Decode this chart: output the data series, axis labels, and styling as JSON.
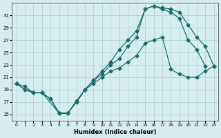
{
  "xlabel": "Humidex (Indice chaleur)",
  "ylabel": "",
  "background_color": "#d7eeee",
  "grid_color": "#b0d4d4",
  "line_color": "#1a6b6b",
  "xlim": [
    -0.5,
    23.5
  ],
  "ylim": [
    14,
    33
  ],
  "yticks": [
    15,
    17,
    19,
    21,
    23,
    25,
    27,
    29,
    31
  ],
  "xticks": [
    0,
    1,
    2,
    3,
    4,
    5,
    6,
    7,
    8,
    9,
    10,
    11,
    12,
    13,
    14,
    15,
    16,
    17,
    18,
    19,
    20,
    21,
    22,
    23
  ],
  "line1_x": [
    0,
    1,
    2,
    3,
    4,
    5,
    6,
    7,
    8,
    9,
    10,
    11,
    12,
    13,
    14,
    15,
    16,
    17,
    18,
    19,
    20,
    21,
    22,
    23
  ],
  "line1_y": [
    20.0,
    19.5,
    18.5,
    18.5,
    17.5,
    15.2,
    15.2,
    17.0,
    19.0,
    20.5,
    21.5,
    23.0,
    24.0,
    26.0,
    27.5,
    32.0,
    32.5,
    32.0,
    31.5,
    30.5,
    27.0,
    25.5,
    22.8,
    null
  ],
  "line2_x": [
    0,
    1,
    2,
    3,
    5,
    6,
    7,
    8,
    9,
    10,
    11,
    12,
    13,
    14,
    15,
    16,
    17,
    18,
    19,
    20,
    21,
    22,
    23
  ],
  "line2_y": [
    20.0,
    19.0,
    18.5,
    18.5,
    15.2,
    15.2,
    17.2,
    19.0,
    20.5,
    22.0,
    23.5,
    25.5,
    27.0,
    28.5,
    32.0,
    32.5,
    32.2,
    32.0,
    31.5,
    29.5,
    27.5,
    26.0,
    22.8
  ],
  "line3_x": [
    0,
    1,
    2,
    3,
    4,
    5,
    6,
    7,
    8,
    9,
    10,
    11,
    12,
    13,
    14,
    15,
    16,
    17,
    18,
    19,
    20,
    21,
    22,
    23
  ],
  "line3_y": [
    20.0,
    19.0,
    18.5,
    18.5,
    17.5,
    15.2,
    15.2,
    17.0,
    19.0,
    20.0,
    21.0,
    22.0,
    22.5,
    23.5,
    24.5,
    26.5,
    27.0,
    27.5,
    22.3,
    21.5,
    21.0,
    21.0,
    22.0,
    22.8
  ]
}
